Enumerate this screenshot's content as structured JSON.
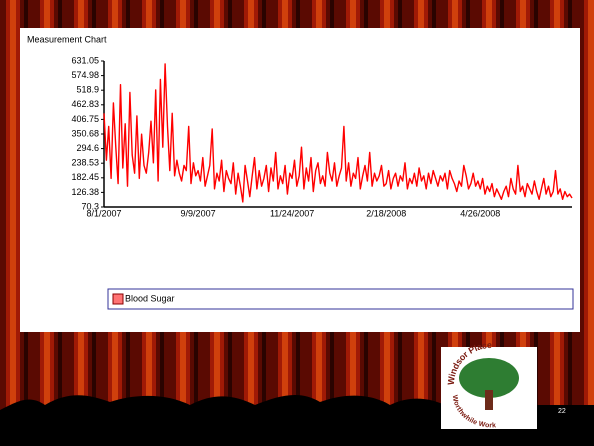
{
  "slide": {
    "page_number": "22",
    "logo": {
      "top": "Windsor Place",
      "bottom": "Worthwhile Work"
    }
  },
  "chart_data": {
    "type": "line",
    "title": "Measurement Chart",
    "categories": [
      "8/1/2007",
      null,
      null,
      null,
      null,
      null,
      null,
      null,
      null,
      null,
      null,
      null,
      null,
      null,
      null,
      null,
      null,
      null,
      null,
      null,
      null,
      null,
      null,
      null,
      null,
      null,
      null,
      null,
      null,
      null,
      null,
      null,
      null,
      null,
      null,
      null,
      null,
      null,
      null,
      null,
      "9/9/2007",
      null,
      null,
      null,
      null,
      null,
      null,
      null,
      null,
      null,
      null,
      null,
      null,
      null,
      null,
      null,
      null,
      null,
      null,
      null,
      null,
      null,
      null,
      null,
      null,
      null,
      null,
      null,
      null,
      null,
      null,
      null,
      null,
      null,
      null,
      null,
      null,
      null,
      null,
      null,
      "11/24/2007",
      null,
      null,
      null,
      null,
      null,
      null,
      null,
      null,
      null,
      null,
      null,
      null,
      null,
      null,
      null,
      null,
      null,
      null,
      null,
      null,
      null,
      null,
      null,
      null,
      null,
      null,
      null,
      null,
      null,
      null,
      null,
      null,
      null,
      null,
      null,
      null,
      null,
      null,
      null,
      "2/18/2008",
      null,
      null,
      null,
      null,
      null,
      null,
      null,
      null,
      null,
      null,
      null,
      null,
      null,
      null,
      null,
      null,
      null,
      null,
      null,
      null,
      null,
      null,
      null,
      null,
      null,
      null,
      null,
      null,
      null,
      null,
      null,
      null,
      null,
      null,
      null,
      null,
      null,
      null,
      null,
      "4/26/2008",
      null,
      null,
      null,
      null,
      null,
      null,
      null,
      null,
      null,
      null,
      null,
      null,
      null,
      null,
      null,
      null,
      null,
      null,
      null,
      null,
      null,
      null,
      null,
      null,
      null,
      null,
      null,
      null,
      null,
      null,
      null,
      null,
      null,
      null,
      null,
      null,
      null,
      null,
      null
    ],
    "series": [
      {
        "name": "Blood Sugar",
        "color": "#ff0000",
        "values": [
          430,
          250,
          380,
          180,
          470,
          300,
          160,
          540,
          220,
          390,
          150,
          510,
          270,
          200,
          420,
          180,
          350,
          230,
          200,
          280,
          400,
          240,
          520,
          170,
          560,
          300,
          620,
          380,
          210,
          430,
          190,
          250,
          200,
          170,
          230,
          210,
          380,
          160,
          240,
          190,
          210,
          170,
          260,
          150,
          190,
          230,
          370,
          140,
          200,
          170,
          250,
          130,
          210,
          180,
          160,
          240,
          120,
          200,
          150,
          90,
          230,
          170,
          110,
          190,
          260,
          140,
          210,
          150,
          180,
          230,
          130,
          220,
          170,
          280,
          140,
          190,
          160,
          230,
          120,
          200,
          180,
          250,
          150,
          190,
          300,
          140,
          220,
          170,
          260,
          130,
          210,
          240,
          160,
          190,
          150,
          280,
          200,
          170,
          240,
          150,
          190,
          220,
          380,
          170,
          240,
          150,
          200,
          180,
          260,
          140,
          190,
          230,
          170,
          280,
          150,
          200,
          170,
          190,
          230,
          150,
          160,
          210,
          140,
          180,
          200,
          150,
          190,
          170,
          240,
          140,
          180,
          160,
          200,
          150,
          220,
          170,
          190,
          140,
          200,
          160,
          210,
          180,
          150,
          190,
          170,
          200,
          140,
          210,
          180,
          160,
          130,
          170,
          150,
          230,
          190,
          140,
          160,
          200,
          150,
          170,
          140,
          180,
          120,
          150,
          130,
          160,
          110,
          140,
          120,
          100,
          130,
          150,
          110,
          180,
          140,
          120,
          230,
          130,
          150,
          110,
          160,
          140,
          120,
          170,
          130,
          100,
          140,
          180,
          120,
          150,
          110,
          130,
          210,
          120,
          140,
          100,
          130,
          110,
          120,
          105
        ]
      }
    ],
    "ylim": [
      70.3,
      631.05
    ],
    "yticks": [
      70.3,
      126.38,
      182.45,
      238.53,
      294.6,
      350.68,
      406.75,
      462.83,
      518.9,
      574.98,
      631.05
    ]
  }
}
